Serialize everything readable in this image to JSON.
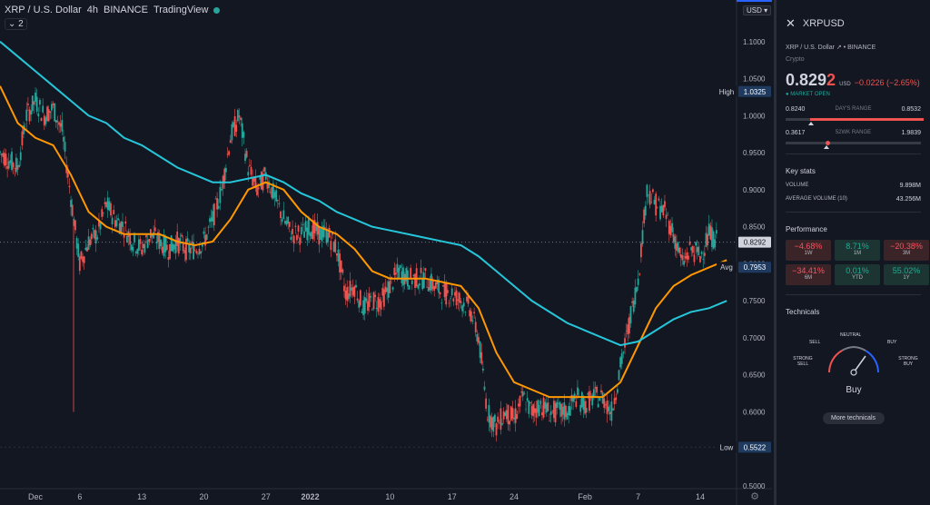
{
  "legend": {
    "symbol": "XRP / U.S. Dollar",
    "interval": "4h",
    "exchange": "BINANCE",
    "source": "TradingView",
    "indicator_count": "2"
  },
  "currency": "USD",
  "chart_data": {
    "type": "candlestick",
    "ylim": [
      0.5,
      1.15
    ],
    "y_ticks": [
      "1.1000",
      "1.0500",
      "1.0000",
      "0.9500",
      "0.9000",
      "0.8500",
      "0.8000",
      "0.7500",
      "0.7000",
      "0.6500",
      "0.6000",
      "0.5500",
      "0.5000"
    ],
    "y_tick_values": [
      1.1,
      1.05,
      1.0,
      0.95,
      0.9,
      0.85,
      0.8,
      0.75,
      0.7,
      0.65,
      0.6,
      0.55,
      0.5
    ],
    "x_ticks": [
      "Dec",
      "6",
      "13",
      "20",
      "27",
      "2022",
      "10",
      "17",
      "24",
      "Feb",
      "7",
      "14"
    ],
    "x_tick_days": [
      0,
      5,
      12,
      19,
      26,
      31,
      40,
      47,
      54,
      62,
      68,
      75
    ],
    "x_range_days": [
      -4,
      79
    ],
    "price_series": [
      [
        -4,
        0.95
      ],
      [
        -2,
        0.93
      ],
      [
        -1,
        1.0
      ],
      [
        0,
        1.02
      ],
      [
        1,
        1.0
      ],
      [
        2,
        1.01
      ],
      [
        3,
        0.98
      ],
      [
        4,
        0.89
      ],
      [
        5,
        0.8
      ],
      [
        6,
        0.83
      ],
      [
        7,
        0.84
      ],
      [
        8,
        0.88
      ],
      [
        9,
        0.86
      ],
      [
        10,
        0.85
      ],
      [
        11,
        0.83
      ],
      [
        12,
        0.82
      ],
      [
        13,
        0.84
      ],
      [
        14,
        0.83
      ],
      [
        15,
        0.82
      ],
      [
        16,
        0.83
      ],
      [
        17,
        0.82
      ],
      [
        18,
        0.82
      ],
      [
        19,
        0.83
      ],
      [
        20,
        0.86
      ],
      [
        21,
        0.9
      ],
      [
        22,
        0.97
      ],
      [
        23,
        1.0
      ],
      [
        24,
        0.93
      ],
      [
        25,
        0.9
      ],
      [
        26,
        0.92
      ],
      [
        27,
        0.89
      ],
      [
        28,
        0.86
      ],
      [
        29,
        0.84
      ],
      [
        30,
        0.84
      ],
      [
        31,
        0.85
      ],
      [
        32,
        0.84
      ],
      [
        33,
        0.84
      ],
      [
        34,
        0.82
      ],
      [
        35,
        0.76
      ],
      [
        36,
        0.77
      ],
      [
        37,
        0.74
      ],
      [
        38,
        0.75
      ],
      [
        39,
        0.75
      ],
      [
        40,
        0.77
      ],
      [
        41,
        0.79
      ],
      [
        42,
        0.78
      ],
      [
        43,
        0.78
      ],
      [
        44,
        0.78
      ],
      [
        45,
        0.77
      ],
      [
        46,
        0.76
      ],
      [
        47,
        0.76
      ],
      [
        48,
        0.75
      ],
      [
        49,
        0.74
      ],
      [
        50,
        0.7
      ],
      [
        51,
        0.6
      ],
      [
        52,
        0.58
      ],
      [
        53,
        0.6
      ],
      [
        54,
        0.59
      ],
      [
        55,
        0.62
      ],
      [
        56,
        0.6
      ],
      [
        57,
        0.61
      ],
      [
        58,
        0.6
      ],
      [
        59,
        0.6
      ],
      [
        60,
        0.6
      ],
      [
        61,
        0.62
      ],
      [
        62,
        0.61
      ],
      [
        63,
        0.62
      ],
      [
        64,
        0.62
      ],
      [
        65,
        0.6
      ],
      [
        66,
        0.66
      ],
      [
        67,
        0.72
      ],
      [
        68,
        0.78
      ],
      [
        69,
        0.9
      ],
      [
        70,
        0.88
      ],
      [
        71,
        0.87
      ],
      [
        72,
        0.84
      ],
      [
        73,
        0.8
      ],
      [
        74,
        0.82
      ],
      [
        75,
        0.81
      ],
      [
        76,
        0.84
      ],
      [
        77,
        0.83
      ]
    ],
    "series": [
      {
        "name": "MA fast",
        "color": "#ff9800",
        "values": [
          [
            -4,
            1.04
          ],
          [
            -2,
            0.99
          ],
          [
            0,
            0.97
          ],
          [
            2,
            0.96
          ],
          [
            4,
            0.92
          ],
          [
            6,
            0.87
          ],
          [
            8,
            0.85
          ],
          [
            10,
            0.84
          ],
          [
            12,
            0.84
          ],
          [
            14,
            0.84
          ],
          [
            16,
            0.83
          ],
          [
            18,
            0.825
          ],
          [
            20,
            0.83
          ],
          [
            22,
            0.86
          ],
          [
            24,
            0.9
          ],
          [
            26,
            0.91
          ],
          [
            28,
            0.9
          ],
          [
            30,
            0.87
          ],
          [
            32,
            0.85
          ],
          [
            34,
            0.84
          ],
          [
            36,
            0.82
          ],
          [
            38,
            0.79
          ],
          [
            40,
            0.78
          ],
          [
            42,
            0.78
          ],
          [
            44,
            0.78
          ],
          [
            46,
            0.775
          ],
          [
            48,
            0.77
          ],
          [
            50,
            0.74
          ],
          [
            52,
            0.68
          ],
          [
            54,
            0.64
          ],
          [
            56,
            0.63
          ],
          [
            58,
            0.62
          ],
          [
            60,
            0.62
          ],
          [
            62,
            0.62
          ],
          [
            64,
            0.62
          ],
          [
            66,
            0.64
          ],
          [
            68,
            0.69
          ],
          [
            70,
            0.74
          ],
          [
            72,
            0.77
          ],
          [
            74,
            0.785
          ],
          [
            76,
            0.795
          ],
          [
            78,
            0.805
          ]
        ]
      },
      {
        "name": "MA slow",
        "color": "#26c6da",
        "values": [
          [
            -4,
            1.1
          ],
          [
            -2,
            1.08
          ],
          [
            0,
            1.06
          ],
          [
            2,
            1.04
          ],
          [
            4,
            1.02
          ],
          [
            6,
            1.0
          ],
          [
            8,
            0.99
          ],
          [
            10,
            0.97
          ],
          [
            12,
            0.96
          ],
          [
            14,
            0.945
          ],
          [
            16,
            0.93
          ],
          [
            18,
            0.92
          ],
          [
            20,
            0.91
          ],
          [
            22,
            0.91
          ],
          [
            24,
            0.915
          ],
          [
            26,
            0.92
          ],
          [
            28,
            0.91
          ],
          [
            30,
            0.895
          ],
          [
            32,
            0.885
          ],
          [
            34,
            0.87
          ],
          [
            36,
            0.86
          ],
          [
            38,
            0.85
          ],
          [
            40,
            0.845
          ],
          [
            42,
            0.84
          ],
          [
            44,
            0.835
          ],
          [
            46,
            0.83
          ],
          [
            48,
            0.825
          ],
          [
            50,
            0.81
          ],
          [
            52,
            0.79
          ],
          [
            54,
            0.77
          ],
          [
            56,
            0.75
          ],
          [
            58,
            0.735
          ],
          [
            60,
            0.72
          ],
          [
            62,
            0.71
          ],
          [
            64,
            0.7
          ],
          [
            66,
            0.69
          ],
          [
            68,
            0.695
          ],
          [
            70,
            0.71
          ],
          [
            72,
            0.725
          ],
          [
            74,
            0.735
          ],
          [
            76,
            0.74
          ],
          [
            78,
            0.75
          ]
        ]
      }
    ],
    "high": {
      "label": "High",
      "value": "1.0325"
    },
    "low": {
      "label": "Low",
      "value": "0.5522"
    },
    "last": {
      "value": "0.8292"
    },
    "avg": {
      "label": "Avg",
      "value": "0.7953"
    }
  },
  "panel": {
    "title": "XRPUSD",
    "subtitle": "XRP / U.S. Dollar",
    "exchange": "BINANCE",
    "category": "Crypto",
    "price_main": "0.829",
    "price_last_digit": "2",
    "price_currency": "USD",
    "change": "−0.0226 (−2.65%)",
    "market_status": "● MARKET OPEN",
    "days_range": {
      "low": "0.8240",
      "label": "DAY'S RANGE",
      "high": "0.8532"
    },
    "wk52_range": {
      "low": "0.3617",
      "label": "52WK RANGE",
      "high": "1.9839"
    },
    "key_stats_title": "Key stats",
    "volume_label": "VOLUME",
    "volume_value": "9.898M",
    "avg_volume_label": "AVERAGE VOLUME (10)",
    "avg_volume_value": "43.256M",
    "performance_title": "Performance",
    "performance": [
      {
        "value": "−4.68%",
        "label": "1W",
        "sign": "neg"
      },
      {
        "value": "8.71%",
        "label": "1M",
        "sign": "pos"
      },
      {
        "value": "−20.38%",
        "label": "3M",
        "sign": "neg"
      },
      {
        "value": "−34.41%",
        "label": "6M",
        "sign": "neg"
      },
      {
        "value": "0.01%",
        "label": "YTD",
        "sign": "pos"
      },
      {
        "value": "55.02%",
        "label": "1Y",
        "sign": "pos"
      }
    ],
    "technicals_title": "Technicals",
    "gauge": {
      "strong_sell": "STRONG\nSELL",
      "sell": "SELL",
      "neutral": "NEUTRAL",
      "buy": "BUY",
      "strong_buy": "STRONG\nBUY",
      "verdict": "Buy"
    },
    "more_button": "More technicals"
  },
  "colors": {
    "up": "#26a69a",
    "down": "#ef5350",
    "bg": "#131722"
  }
}
